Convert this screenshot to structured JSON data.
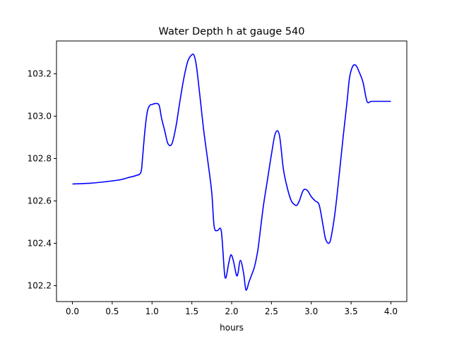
{
  "chart_data": {
    "type": "line",
    "title": "Water Depth h at gauge 540",
    "xlabel": "hours",
    "ylabel": "",
    "xlim": [
      -0.2,
      4.2
    ],
    "ylim": [
      102.125,
      103.355
    ],
    "xticks": [
      0.0,
      0.5,
      1.0,
      1.5,
      2.0,
      2.5,
      3.0,
      3.5,
      4.0
    ],
    "xtick_labels": [
      "0.0",
      "0.5",
      "1.0",
      "1.5",
      "2.0",
      "2.5",
      "3.0",
      "3.5",
      "4.0"
    ],
    "yticks": [
      102.2,
      102.4,
      102.6,
      102.8,
      103.0,
      103.2
    ],
    "ytick_labels": [
      "102.2",
      "102.4",
      "102.6",
      "102.8",
      "103.0",
      "103.2"
    ],
    "grid": false,
    "series": [
      {
        "name": "",
        "color": "#0000ff",
        "x": [
          0.0,
          0.2,
          0.4,
          0.6,
          0.7,
          0.8,
          0.86,
          0.88,
          0.91,
          0.94,
          0.97,
          1.0,
          1.05,
          1.09,
          1.12,
          1.16,
          1.2,
          1.25,
          1.3,
          1.35,
          1.4,
          1.45,
          1.5,
          1.53,
          1.56,
          1.6,
          1.65,
          1.7,
          1.75,
          1.78,
          1.82,
          1.86,
          1.88,
          1.91,
          1.93,
          1.96,
          1.99,
          2.02,
          2.06,
          2.08,
          2.11,
          2.15,
          2.18,
          2.22,
          2.25,
          2.28,
          2.3,
          2.33,
          2.36,
          2.4,
          2.45,
          2.5,
          2.55,
          2.6,
          2.65,
          2.7,
          2.75,
          2.8,
          2.82,
          2.85,
          2.9,
          2.95,
          3.0,
          3.05,
          3.1,
          3.15,
          3.18,
          3.22,
          3.25,
          3.3,
          3.35,
          3.4,
          3.45,
          3.48,
          3.52,
          3.56,
          3.6,
          3.65,
          3.7,
          3.75,
          3.8,
          3.85,
          3.88,
          3.92,
          3.96,
          4.0
        ],
        "y": [
          102.68,
          102.683,
          102.69,
          102.7,
          102.71,
          102.72,
          102.735,
          102.8,
          102.93,
          103.02,
          103.05,
          103.055,
          103.06,
          103.05,
          102.99,
          102.93,
          102.87,
          102.87,
          102.95,
          103.07,
          103.18,
          103.26,
          103.29,
          103.285,
          103.23,
          103.1,
          102.93,
          102.79,
          102.64,
          102.48,
          102.46,
          102.47,
          102.42,
          102.26,
          102.24,
          102.3,
          102.345,
          102.32,
          102.25,
          102.26,
          102.32,
          102.26,
          102.18,
          102.22,
          102.25,
          102.28,
          102.31,
          102.37,
          102.46,
          102.58,
          102.7,
          102.82,
          102.92,
          102.91,
          102.75,
          102.66,
          102.6,
          102.58,
          102.58,
          102.6,
          102.65,
          102.65,
          102.62,
          102.6,
          102.58,
          102.48,
          102.42,
          102.4,
          102.43,
          102.55,
          102.72,
          102.9,
          103.07,
          103.18,
          103.235,
          103.24,
          103.21,
          103.16,
          103.07,
          103.07,
          103.07,
          103.07,
          103.07,
          103.07,
          103.07,
          103.07
        ]
      }
    ]
  }
}
